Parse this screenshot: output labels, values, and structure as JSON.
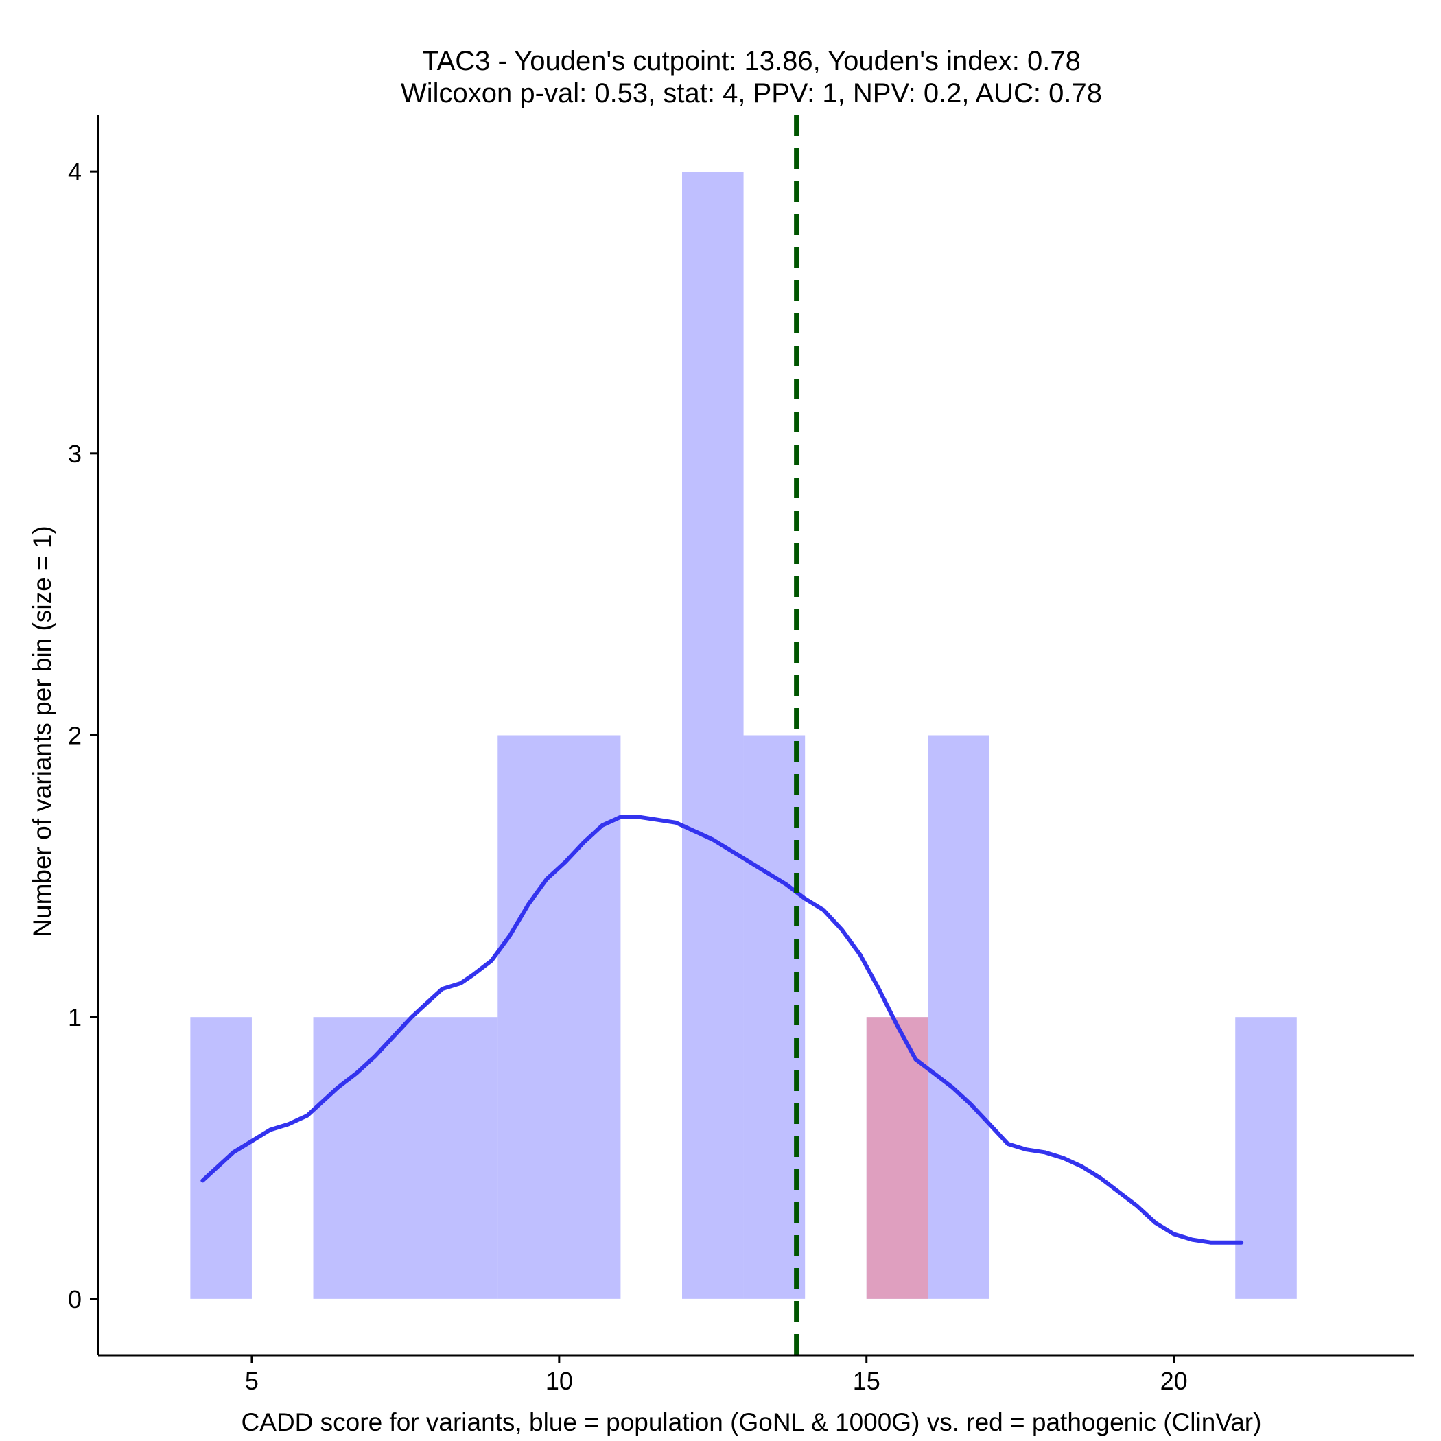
{
  "chart_data": {
    "type": "histogram",
    "title": "TAC3 - Youden's cutpoint: 13.86, Youden's index: 0.78",
    "subtitle": "Wilcoxon p-val: 0.53, stat: 4, PPV: 1, NPV: 0.2, AUC: 0.78",
    "xlabel": "CADD score for variants, blue = population (GoNL & 1000G) vs. red = pathogenic (ClinVar)",
    "ylabel": "Number of variants per bin (size = 1)",
    "xlim": [
      2.5,
      23.9
    ],
    "ylim": [
      -0.2,
      4.2
    ],
    "x_ticks": [
      5,
      10,
      15,
      20
    ],
    "y_ticks": [
      0,
      1,
      2,
      3,
      4
    ],
    "bin_size": 1,
    "cutpoint": 13.86,
    "series": [
      {
        "name": "population",
        "color": "#8080ff",
        "opacity": 0.5,
        "bins": [
          {
            "start": 4,
            "end": 5,
            "count": 1
          },
          {
            "start": 6,
            "end": 7,
            "count": 1
          },
          {
            "start": 7,
            "end": 8,
            "count": 1
          },
          {
            "start": 8,
            "end": 9,
            "count": 1
          },
          {
            "start": 9,
            "end": 10,
            "count": 2
          },
          {
            "start": 10,
            "end": 11,
            "count": 2
          },
          {
            "start": 12,
            "end": 13,
            "count": 4
          },
          {
            "start": 13,
            "end": 14,
            "count": 2
          },
          {
            "start": 15,
            "end": 16,
            "count": 1
          },
          {
            "start": 16,
            "end": 17,
            "count": 2
          },
          {
            "start": 21,
            "end": 22,
            "count": 1
          }
        ]
      },
      {
        "name": "pathogenic",
        "color": "#ff8080",
        "opacity": 0.5,
        "bins": [
          {
            "start": 15,
            "end": 16,
            "count": 1
          }
        ]
      }
    ],
    "density": {
      "color": "#3333ee",
      "x": [
        4.2,
        4.4,
        4.7,
        5.0,
        5.3,
        5.6,
        5.9,
        6.1,
        6.4,
        6.7,
        7.0,
        7.3,
        7.6,
        7.9,
        8.1,
        8.4,
        8.6,
        8.9,
        9.2,
        9.5,
        9.8,
        10.1,
        10.4,
        10.7,
        11.0,
        11.3,
        11.6,
        11.9,
        12.2,
        12.5,
        12.8,
        13.1,
        13.4,
        13.7,
        14.0,
        14.3,
        14.6,
        14.9,
        15.2,
        15.5,
        15.8,
        16.1,
        16.4,
        16.7,
        17.0,
        17.3,
        17.6,
        17.9,
        18.2,
        18.5,
        18.8,
        19.1,
        19.4,
        19.7,
        20.0,
        20.3,
        20.6,
        20.9,
        21.1
      ],
      "y": [
        0.42,
        0.46,
        0.52,
        0.56,
        0.6,
        0.62,
        0.65,
        0.69,
        0.75,
        0.8,
        0.86,
        0.93,
        1.0,
        1.06,
        1.1,
        1.12,
        1.15,
        1.2,
        1.29,
        1.4,
        1.49,
        1.55,
        1.62,
        1.68,
        1.71,
        1.71,
        1.7,
        1.69,
        1.66,
        1.63,
        1.59,
        1.55,
        1.51,
        1.47,
        1.42,
        1.38,
        1.31,
        1.22,
        1.1,
        0.97,
        0.85,
        0.8,
        0.75,
        0.69,
        0.62,
        0.55,
        0.53,
        0.52,
        0.5,
        0.47,
        0.43,
        0.38,
        0.33,
        0.27,
        0.23,
        0.21,
        0.2,
        0.2,
        0.2
      ]
    }
  }
}
